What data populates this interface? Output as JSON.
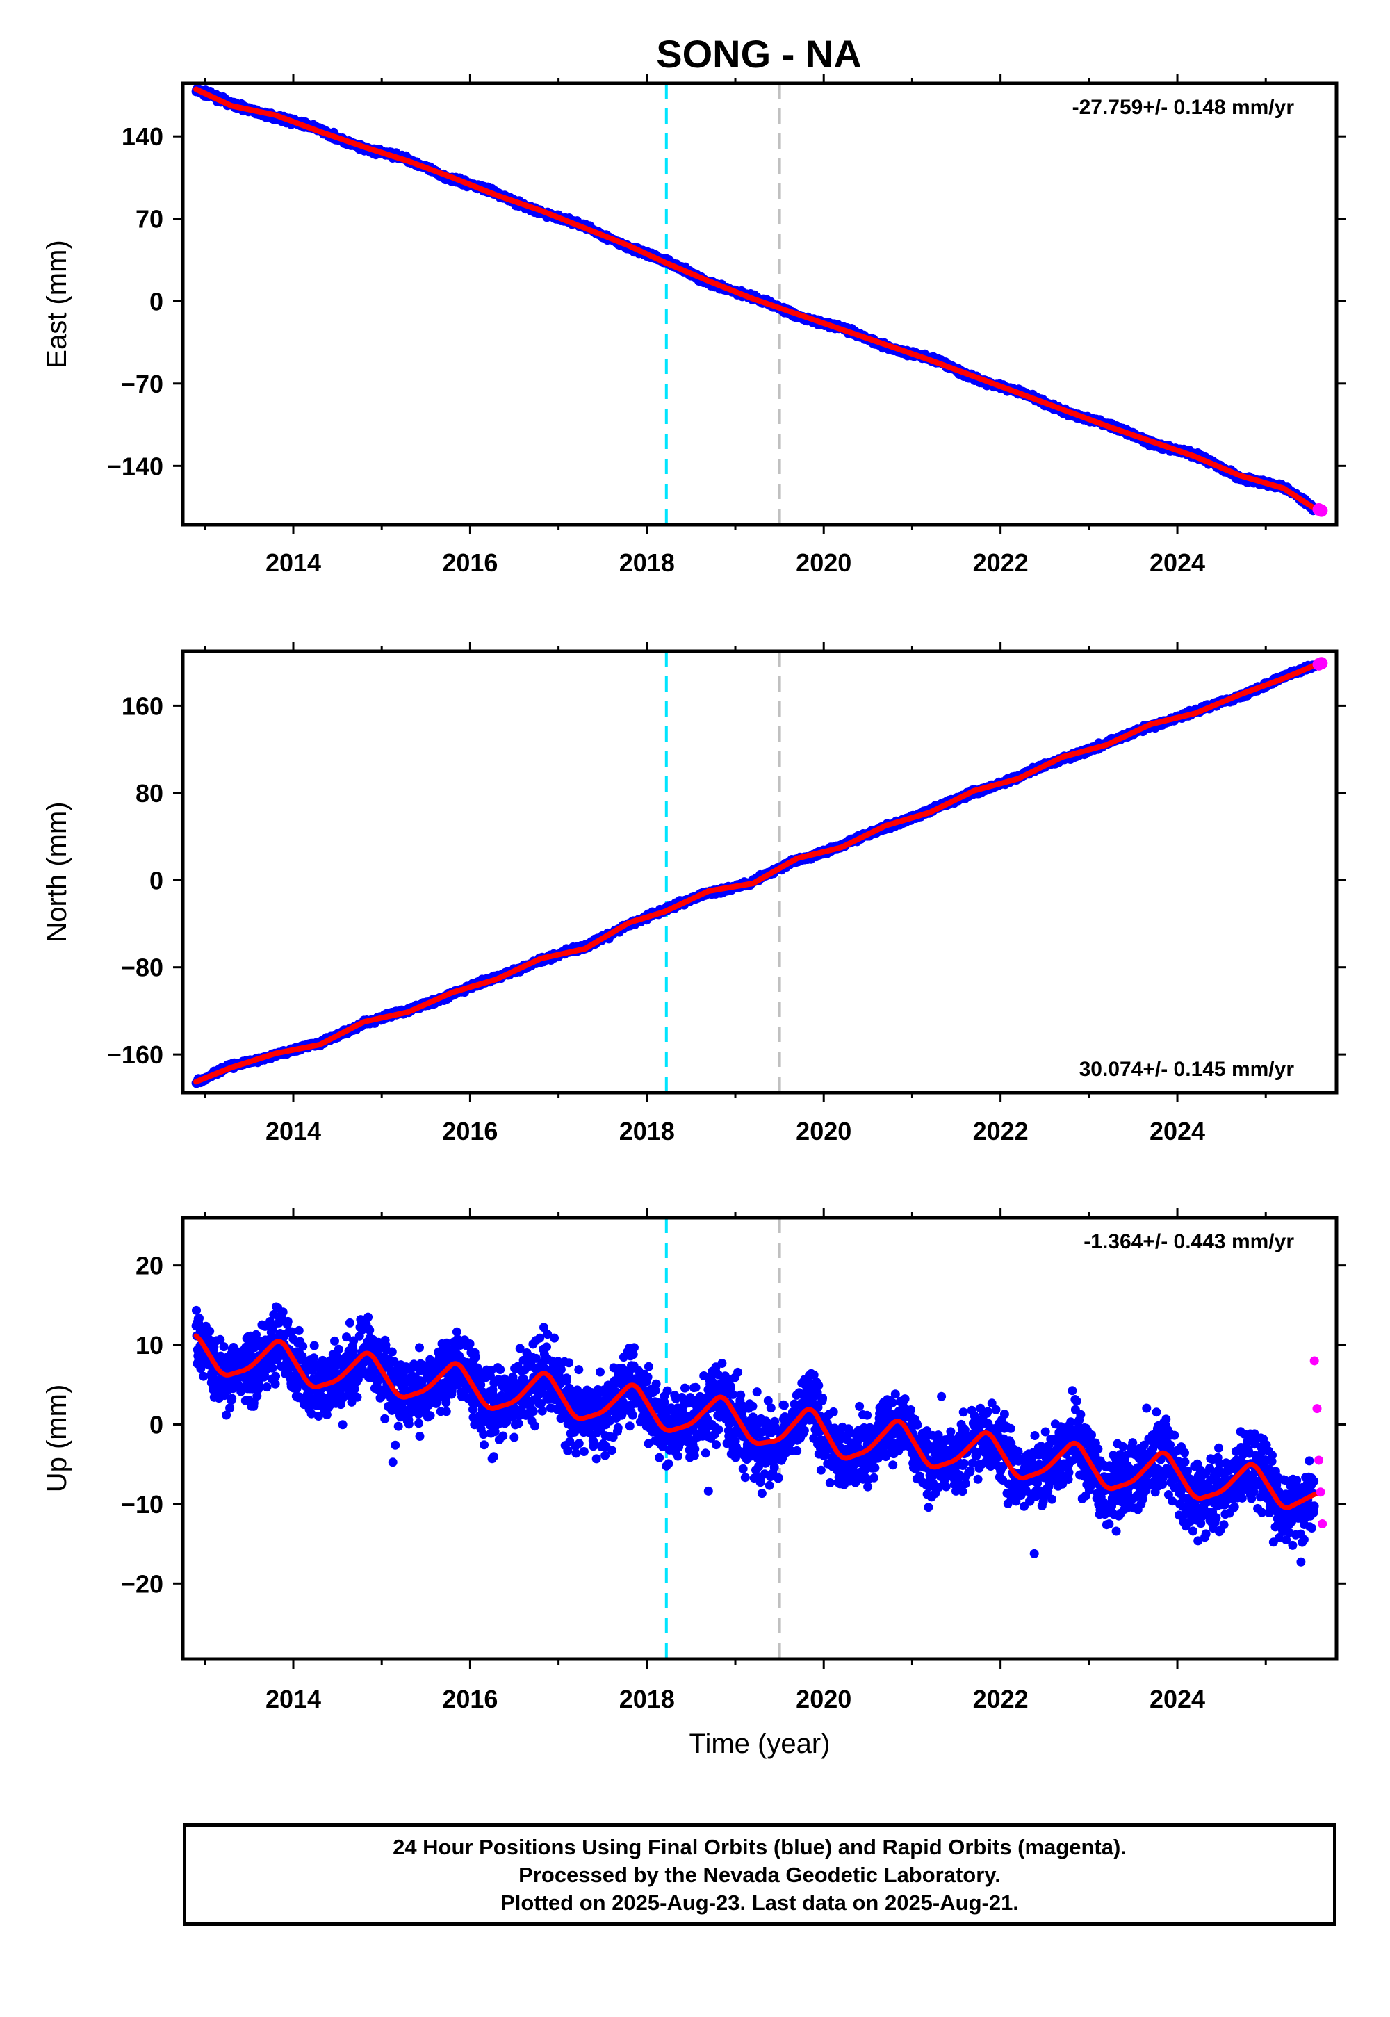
{
  "title": "SONG - NA",
  "colors": {
    "final": "#0000ff",
    "rapid": "#ff00ff",
    "model": "#ff0000",
    "event_cyan": "#00e5ff",
    "event_gray": "#c0c0c0"
  },
  "chart_data": [
    {
      "type": "scatter",
      "panel": "east",
      "ylabel": "East (mm)",
      "xlabel": "",
      "xlim": [
        2012.75,
        2025.8
      ],
      "ylim": [
        -190,
        185
      ],
      "yticks": [
        140,
        70,
        0,
        -70,
        -140
      ],
      "ytick_labels": [
        "140",
        "70",
        "0",
        "−70",
        "−140"
      ],
      "xticks": [
        2014,
        2016,
        2018,
        2020,
        2022,
        2024
      ],
      "xtick_labels": [
        "2014",
        "2016",
        "2018",
        "2020",
        "2022",
        "2024"
      ],
      "rate_text": "-27.759+/- 0.148 mm/yr",
      "rate_position": "top-right",
      "event_lines": [
        2018.22,
        2019.5
      ],
      "series": [
        {
          "role": "final",
          "x": [
            2012.9,
            2013.3,
            2013.8,
            2014.3,
            2014.8,
            2015.3,
            2015.8,
            2016.3,
            2016.8,
            2017.3,
            2017.8,
            2018.2,
            2018.7,
            2019.2,
            2019.7,
            2020.2,
            2020.7,
            2021.2,
            2021.7,
            2022.2,
            2022.7,
            2023.2,
            2023.7,
            2024.2,
            2024.7,
            2025.2,
            2025.55
          ],
          "y": [
            180,
            166,
            158,
            144,
            131,
            119,
            105,
            90,
            77,
            62,
            47,
            33,
            17,
            2,
            -11,
            -24,
            -37,
            -50,
            -64,
            -78,
            -92,
            -106,
            -119,
            -132,
            -148,
            -159,
            -176
          ]
        },
        {
          "role": "rapid",
          "x": [
            2025.6,
            2025.63
          ],
          "y": [
            -177,
            -178
          ]
        }
      ]
    },
    {
      "type": "scatter",
      "panel": "north",
      "ylabel": "North (mm)",
      "xlabel": "",
      "xlim": [
        2012.75,
        2025.8
      ],
      "ylim": [
        -195,
        210
      ],
      "yticks": [
        160,
        80,
        0,
        -80,
        -160
      ],
      "ytick_labels": [
        "160",
        "80",
        "0",
        "−80",
        "−160"
      ],
      "xticks": [
        2014,
        2016,
        2018,
        2020,
        2022,
        2024
      ],
      "xtick_labels": [
        "2014",
        "2016",
        "2018",
        "2020",
        "2022",
        "2024"
      ],
      "rate_text": "30.074+/- 0.145 mm/yr",
      "rate_position": "bottom-right",
      "event_lines": [
        2018.22,
        2019.5
      ],
      "series": [
        {
          "role": "final",
          "x": [
            2012.9,
            2013.3,
            2013.8,
            2014.3,
            2014.8,
            2015.3,
            2015.8,
            2016.3,
            2016.8,
            2017.3,
            2017.8,
            2018.2,
            2018.7,
            2019.2,
            2019.7,
            2020.2,
            2020.7,
            2021.2,
            2021.7,
            2022.2,
            2022.7,
            2023.2,
            2023.7,
            2024.2,
            2024.7,
            2025.2,
            2025.55
          ],
          "y": [
            -185,
            -172,
            -159,
            -151,
            -130,
            -121,
            -103,
            -91,
            -72,
            -63,
            -39,
            -29,
            -10,
            -3,
            20,
            30,
            50,
            62,
            82,
            93,
            113,
            124,
            143,
            153,
            170,
            185,
            197
          ]
        },
        {
          "role": "rapid",
          "x": [
            2025.6,
            2025.63
          ],
          "y": [
            198,
            199
          ]
        }
      ]
    },
    {
      "type": "scatter",
      "panel": "up",
      "ylabel": "Up (mm)",
      "xlabel": "Time (year)",
      "xlim": [
        2012.75,
        2025.8
      ],
      "ylim": [
        -29.5,
        26
      ],
      "yticks": [
        20,
        10,
        0,
        -10,
        -20
      ],
      "ytick_labels": [
        "20",
        "10",
        "0",
        "−10",
        "−20"
      ],
      "xticks": [
        2014,
        2016,
        2018,
        2020,
        2022,
        2024
      ],
      "xtick_labels": [
        "2014",
        "2016",
        "2018",
        "2020",
        "2022",
        "2024"
      ],
      "rate_text": "-1.364+/- 0.443 mm/yr",
      "rate_position": "top-right",
      "event_lines": [
        2018.22,
        2019.5
      ],
      "series": [
        {
          "role": "model",
          "x": [
            2012.9,
            2013.2,
            2013.5,
            2013.85,
            2014.2,
            2014.5,
            2014.85,
            2015.2,
            2015.5,
            2015.85,
            2016.2,
            2016.5,
            2016.85,
            2017.2,
            2017.5,
            2017.85,
            2018.2,
            2018.5,
            2018.85,
            2019.2,
            2019.5,
            2019.85,
            2020.2,
            2020.5,
            2020.85,
            2021.2,
            2021.5,
            2021.85,
            2022.2,
            2022.5,
            2022.85,
            2023.2,
            2023.5,
            2023.85,
            2024.2,
            2024.5,
            2024.85,
            2025.2,
            2025.6
          ],
          "y": [
            11.5,
            6,
            7,
            11,
            4.5,
            5.5,
            9.5,
            3.2,
            4.3,
            8.2,
            1.8,
            2.8,
            7,
            0.5,
            1.5,
            5.5,
            -1,
            0,
            4,
            -2.5,
            -2,
            2.5,
            -4.5,
            -3.3,
            1,
            -5.6,
            -4.5,
            -0.5,
            -7,
            -5.8,
            -1.8,
            -8.3,
            -7.2,
            -3,
            -9.5,
            -8.5,
            -4.5,
            -10.8,
            -8.5
          ]
        },
        {
          "role": "rapid",
          "x": [
            2025.55,
            2025.58,
            2025.6,
            2025.62,
            2025.64
          ],
          "y": [
            8,
            2,
            -4.5,
            -8.5,
            -12.5
          ]
        }
      ]
    }
  ],
  "footer": {
    "line1": "24 Hour Positions Using Final Orbits (blue) and Rapid Orbits (magenta).",
    "line2": "Processed by the Nevada Geodetic Laboratory.",
    "line3": "Plotted on 2025-Aug-23. Last data on 2025-Aug-21."
  }
}
